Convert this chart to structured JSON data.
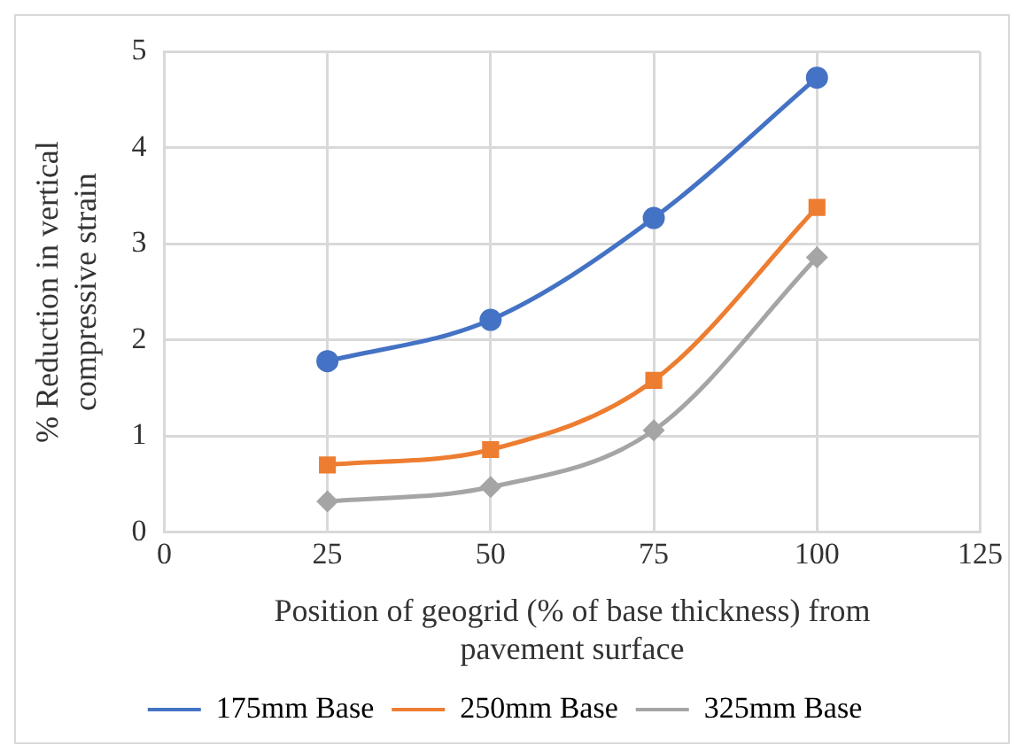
{
  "chart_data": {
    "type": "line",
    "xlabel": "Position of geogrid (% of base thickness) from pavement surface",
    "ylabel": "% Reduction in vertical compressive strain",
    "x": [
      25,
      50,
      75,
      100
    ],
    "series": [
      {
        "name": "175mm Base",
        "color": "#4472c4",
        "marker": "circle",
        "values": [
          1.78,
          2.21,
          3.27,
          4.73
        ]
      },
      {
        "name": "250mm Base",
        "color": "#ed7d31",
        "marker": "square",
        "values": [
          0.7,
          0.86,
          1.58,
          3.38
        ]
      },
      {
        "name": "325mm Base",
        "color": "#a5a5a5",
        "marker": "diamond",
        "values": [
          0.32,
          0.47,
          1.06,
          2.86
        ]
      }
    ],
    "xlim": [
      0,
      125
    ],
    "xticks": [
      0,
      25,
      50,
      75,
      100,
      125
    ],
    "ylim": [
      0,
      5
    ],
    "yticks": [
      0,
      1,
      2,
      3,
      4,
      5
    ],
    "grid": true,
    "legend": "bottom"
  }
}
